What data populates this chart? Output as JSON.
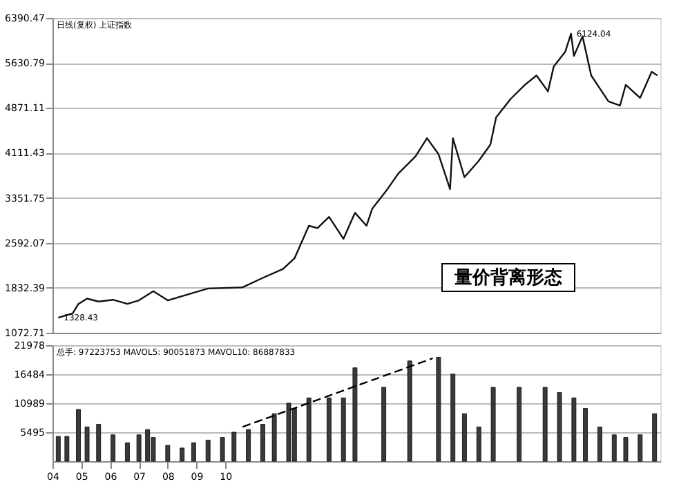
{
  "chart_data": [
    {
      "type": "line",
      "xlim": [
        4,
        25.1
      ],
      "ylim": [
        1072.71,
        6390.47
      ],
      "yticks": [
        1072.71,
        1832.39,
        2592.07,
        3351.75,
        4111.43,
        4871.11,
        5630.79,
        6390.47
      ],
      "grid": "y",
      "tick_labels": "y",
      "line_style": "solid",
      "marker": "none",
      "series": [
        {
          "color": "#111111",
          "x": [
            4.2,
            4.7,
            4.9,
            5.2,
            5.6,
            6.1,
            6.6,
            7.0,
            7.5,
            8.0,
            9.4,
            10.6,
            11.3,
            12.0,
            12.4,
            12.9,
            13.2,
            13.6,
            14.1,
            14.5,
            14.9,
            15.1,
            15.6,
            16.0,
            16.6,
            17.0,
            17.4,
            17.8,
            17.9,
            18.3,
            18.8,
            19.2,
            19.4,
            19.9,
            20.4,
            20.8,
            21.2,
            21.4,
            21.8,
            22.0,
            22.1,
            22.4,
            22.7,
            23.0,
            23.3,
            23.7,
            23.9,
            24.4,
            24.8,
            25.0
          ],
          "values": [
            1328.43,
            1400,
            1560,
            1650,
            1600,
            1630,
            1560,
            1620,
            1775,
            1620,
            1820,
            1840,
            2000,
            2150,
            2330,
            2880,
            2840,
            3030,
            2660,
            3100,
            2880,
            3170,
            3480,
            3760,
            4050,
            4360,
            4090,
            3500,
            4360,
            3700,
            3980,
            4250,
            4710,
            5020,
            5260,
            5420,
            5150,
            5570,
            5820,
            6124.04,
            5750,
            6080,
            5420,
            5200,
            4980,
            4910,
            5260,
            5040,
            5480,
            5420
          ]
        }
      ],
      "annotations": [
        "日线(复权) 上证指数",
        {
          "text": "1328.43",
          "x": 4.2,
          "y": 1328.43
        },
        {
          "text": "6124.04",
          "x": 22.0,
          "y": 6124.04
        },
        "量价背离形态"
      ]
    },
    {
      "type": "bar",
      "xlim": [
        4,
        25.1
      ],
      "ylim": [
        0,
        21978
      ],
      "yticks": [
        5495,
        10989,
        16484,
        21978
      ],
      "grid": "y",
      "xticks": [
        {
          "value": 4,
          "label": "04"
        },
        {
          "value": 5,
          "label": "05"
        },
        {
          "value": 6,
          "label": "06"
        },
        {
          "value": 7,
          "label": "07"
        },
        {
          "value": 8,
          "label": "08"
        },
        {
          "value": 9,
          "label": "09"
        },
        {
          "value": 10,
          "label": "10"
        }
      ],
      "series": [
        {
          "type": "bar",
          "color": "#3a3a3a",
          "x": [
            4.2,
            4.5,
            4.9,
            5.2,
            5.6,
            6.1,
            6.6,
            7.0,
            7.3,
            7.5,
            8.0,
            8.5,
            8.9,
            9.4,
            9.9,
            10.3,
            10.8,
            11.3,
            11.7,
            12.2,
            12.4,
            12.9,
            13.6,
            14.1,
            14.5,
            15.5,
            16.4,
            17.4,
            17.9,
            18.3,
            18.8,
            19.3,
            20.2,
            21.1,
            21.6,
            22.1,
            22.5,
            23.0,
            23.5,
            23.9,
            24.4,
            24.9
          ],
          "values": [
            4700,
            4700,
            9800,
            6500,
            7000,
            5000,
            3500,
            5000,
            6000,
            4500,
            3000,
            2500,
            3500,
            4000,
            4500,
            5500,
            6000,
            7000,
            9000,
            11000,
            10000,
            12000,
            12000,
            12000,
            17700,
            14000,
            19000,
            19700,
            16500,
            9000,
            6500,
            14000,
            14000,
            14000,
            13000,
            12000,
            10000,
            6500,
            5000,
            4500,
            5000,
            9000
          ]
        },
        {
          "type": "line",
          "line_style": "dashed",
          "color": "#000000",
          "x": [
            10.6,
            17.2
          ],
          "values": [
            6500,
            19500
          ]
        }
      ],
      "annotations": [
        "总手: 97223753 MAVOL5: 90051873 MAVOL10: 86887833"
      ]
    }
  ]
}
